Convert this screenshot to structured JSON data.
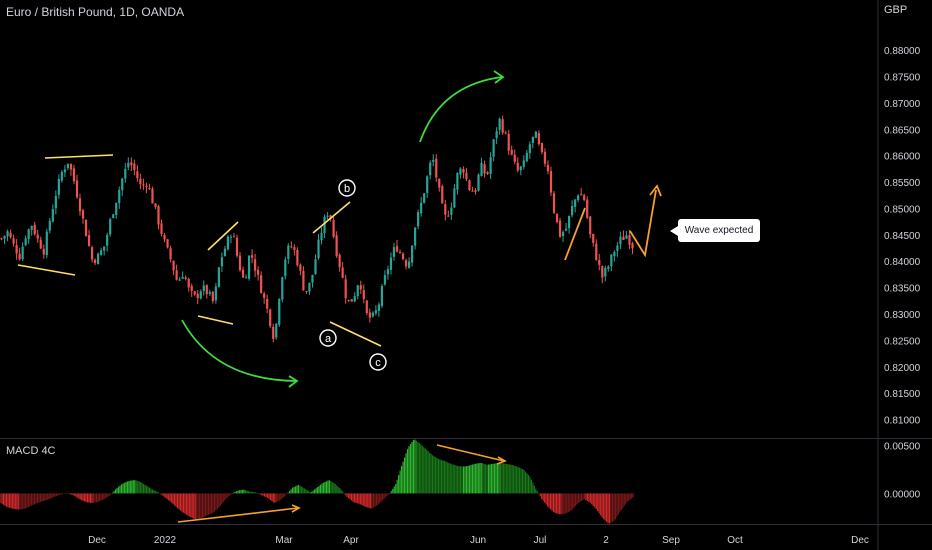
{
  "header": {
    "title": "Euro / British Pound, 1D, OANDA",
    "currency": "GBP"
  },
  "macd": {
    "label": "MACD 4C"
  },
  "annotations": {
    "callout": "Wave expected",
    "wave_a": "a",
    "wave_b": "b",
    "wave_c": "c"
  },
  "colors": {
    "up": "#26a69a",
    "down": "#ef5350",
    "macd_up": "#2eb82e",
    "macd_down": "#d42b2b",
    "yellow": "#ffe066",
    "green_arrow": "#3ddc3d",
    "orange": "#f5a12f",
    "axis_text": "#d1d4dc"
  },
  "chart_data": [
    {
      "type": "candlestick",
      "title": "Euro / British Pound, 1D, OANDA",
      "ylabel": "GBP",
      "ylim": [
        0.8065,
        0.8895
      ],
      "yticks": [
        "0.88000",
        "0.87500",
        "0.87000",
        "0.86500",
        "0.86000",
        "0.85500",
        "0.85000",
        "0.84500",
        "0.84000",
        "0.83500",
        "0.83000",
        "0.82500",
        "0.82000",
        "0.81500",
        "0.81000"
      ],
      "xticks": [
        "Dec",
        "2022",
        "Mar",
        "Apr",
        "Jun",
        "Jul",
        "2",
        "Sep",
        "Oct",
        "Dec"
      ],
      "closes": [
        0.8443,
        0.8455,
        0.843,
        0.841,
        0.845,
        0.847,
        0.844,
        0.842,
        0.848,
        0.853,
        0.857,
        0.859,
        0.855,
        0.85,
        0.845,
        0.84,
        0.841,
        0.843,
        0.848,
        0.852,
        0.856,
        0.859,
        0.857,
        0.854,
        0.855,
        0.851,
        0.847,
        0.843,
        0.84,
        0.836,
        0.838,
        0.834,
        0.833,
        0.835,
        0.834,
        0.832,
        0.84,
        0.843,
        0.846,
        0.84,
        0.836,
        0.842,
        0.838,
        0.834,
        0.83,
        0.825,
        0.836,
        0.842,
        0.843,
        0.839,
        0.834,
        0.836,
        0.842,
        0.847,
        0.85,
        0.843,
        0.838,
        0.832,
        0.833,
        0.837,
        0.83,
        0.829,
        0.831,
        0.836,
        0.84,
        0.843,
        0.841,
        0.839,
        0.846,
        0.85,
        0.855,
        0.86,
        0.854,
        0.848,
        0.85,
        0.856,
        0.858,
        0.854,
        0.853,
        0.858,
        0.856,
        0.862,
        0.867,
        0.864,
        0.86,
        0.857,
        0.858,
        0.862,
        0.864,
        0.86,
        0.858,
        0.85,
        0.845,
        0.846,
        0.85,
        0.853,
        0.852,
        0.845,
        0.841,
        0.837,
        0.839,
        0.842,
        0.844,
        0.845,
        0.843
      ]
    },
    {
      "type": "histogram",
      "title": "MACD 4C",
      "ylim": [
        -0.0032,
        0.0058
      ],
      "yticks": [
        "0.00500",
        "0.00000"
      ],
      "values": [
        -0.001,
        -0.0014,
        -0.0016,
        -0.0017,
        -0.0016,
        -0.0013,
        -0.001,
        -0.0008,
        -0.0006,
        -0.0003,
        -0.0001,
        0.0,
        -0.0002,
        -0.0006,
        -0.0009,
        -0.001,
        -0.0009,
        -0.0006,
        -0.0002,
        0.0005,
        0.001,
        0.0013,
        0.0014,
        0.0012,
        0.0008,
        0.0004,
        0.0001,
        -0.0004,
        -0.0009,
        -0.0015,
        -0.002,
        -0.0024,
        -0.0027,
        -0.0026,
        -0.0023,
        -0.002,
        -0.0014,
        -0.0006,
        0.0,
        0.0003,
        0.0004,
        0.0002,
        0.0001,
        -0.0002,
        -0.0005,
        -0.001,
        -0.0007,
        -0.0001,
        0.0006,
        0.0009,
        0.0005,
        0.0001,
        0.0006,
        0.0011,
        0.0014,
        0.001,
        0.0004,
        -0.0004,
        -0.0009,
        -0.0011,
        -0.0014,
        -0.0016,
        -0.0012,
        -0.0006,
        0.0,
        0.001,
        0.003,
        0.0048,
        0.0057,
        0.0052,
        0.0046,
        0.004,
        0.0036,
        0.0034,
        0.0031,
        0.0029,
        0.0028,
        0.0029,
        0.0031,
        0.0032,
        0.003,
        0.0031,
        0.0032,
        0.0031,
        0.003,
        0.0028,
        0.0025,
        0.0018,
        0.0005,
        -0.0006,
        -0.0014,
        -0.002,
        -0.0022,
        -0.0021,
        -0.0017,
        -0.001,
        -0.0006,
        -0.001,
        -0.0017,
        -0.0026,
        -0.0032,
        -0.0028,
        -0.0018,
        -0.0009,
        -0.0004
      ]
    }
  ]
}
